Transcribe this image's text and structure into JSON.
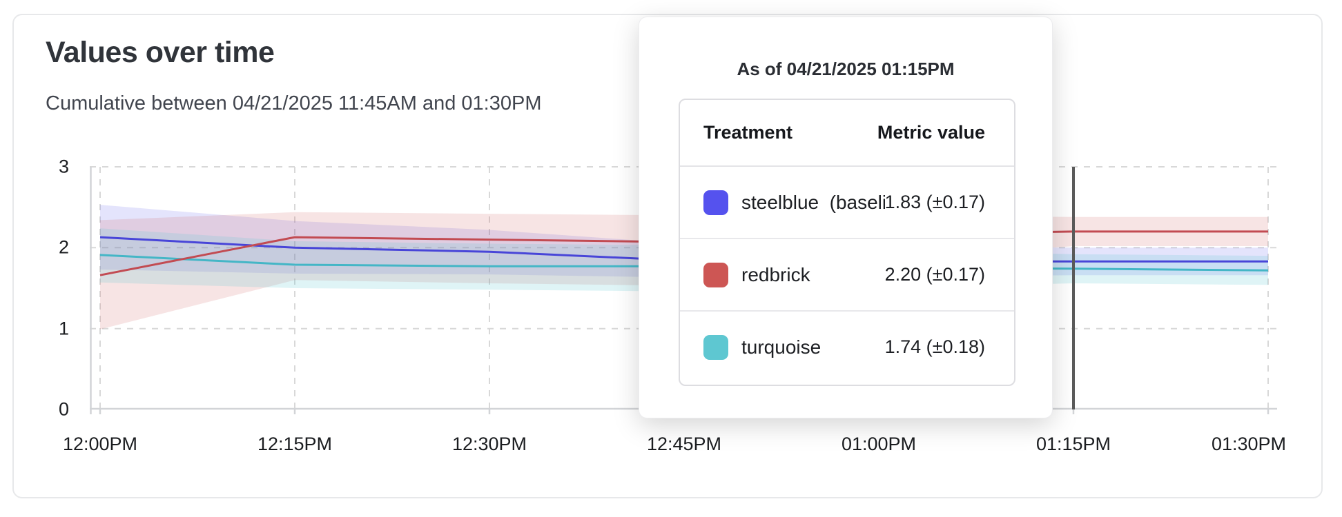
{
  "header": {
    "title": "Values over time",
    "subtitle": "Cumulative between 04/21/2025 11:45AM and 01:30PM"
  },
  "tooltip": {
    "title": "As of 04/21/2025 01:15PM",
    "columns": {
      "treatment": "Treatment",
      "metric_value": "Metric value"
    },
    "rows": [
      {
        "label": "steelblue  (baseli",
        "value": "1.83 (±0.17)",
        "swatch_color": "#5552ee"
      },
      {
        "label": "redbrick",
        "value": "2.20 (±0.17)",
        "swatch_color": "#cd5654"
      },
      {
        "label": "turquoise",
        "value": "1.74 (±0.18)",
        "swatch_color": "#5ec7d1"
      }
    ]
  },
  "chart_data": {
    "type": "line",
    "title": "Values over time",
    "x_tick_labels": [
      "12:00PM",
      "12:15PM",
      "12:30PM",
      "12:45PM",
      "01:00PM",
      "01:15PM",
      "01:30PM"
    ],
    "y_tick_labels": [
      "0",
      "1",
      "2",
      "3"
    ],
    "ylim": [
      0,
      3
    ],
    "grid": "dashed-both-axes",
    "legend_position": "in-tooltip",
    "axis_color": "#d2d4d7",
    "gridline_color": "#d8d8d8",
    "hover": {
      "x_label": "01:15PM",
      "marker_color": "#5a5a5a"
    },
    "series": [
      {
        "name": "steelblue",
        "line_color": "#4845d8",
        "band_color": "rgba(88,85,235,0.16)",
        "values": [
          2.13,
          2.0,
          1.95,
          1.84,
          1.83,
          1.83,
          1.83
        ],
        "band_upper": [
          2.53,
          2.33,
          2.22,
          2.05,
          2.02,
          2.0,
          2.0
        ],
        "band_lower": [
          1.73,
          1.68,
          1.67,
          1.63,
          1.64,
          1.66,
          1.66
        ]
      },
      {
        "name": "redbrick",
        "line_color": "#c24b52",
        "band_color": "rgba(205,86,90,0.16)",
        "values": [
          1.66,
          2.13,
          2.1,
          2.07,
          2.16,
          2.2,
          2.2
        ],
        "band_upper": [
          2.34,
          2.44,
          2.42,
          2.4,
          2.4,
          2.38,
          2.38
        ],
        "band_lower": [
          0.99,
          1.6,
          1.56,
          1.53,
          1.85,
          2.02,
          2.02
        ]
      },
      {
        "name": "turquoise",
        "line_color": "#44b6c6",
        "band_color": "rgba(94,199,209,0.20)",
        "values": [
          1.91,
          1.79,
          1.77,
          1.77,
          1.75,
          1.74,
          1.72
        ],
        "band_upper": [
          2.24,
          2.08,
          2.05,
          2.03,
          1.97,
          1.92,
          1.9
        ],
        "band_lower": [
          1.57,
          1.5,
          1.48,
          1.46,
          1.5,
          1.56,
          1.54
        ]
      }
    ]
  }
}
